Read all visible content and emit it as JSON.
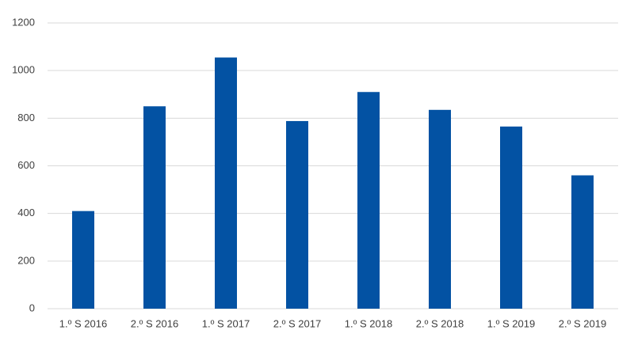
{
  "chart_data": {
    "type": "bar",
    "categories": [
      "1.º S 2016",
      "2.º S 2016",
      "1.º S 2017",
      "2.º S 2017",
      "1.º S 2018",
      "2.º S 2018",
      "1.º S 2019",
      "2.º S 2019"
    ],
    "values": [
      410,
      850,
      1055,
      788,
      910,
      835,
      765,
      560
    ],
    "color": "#0352a3",
    "ylim": [
      0,
      1200
    ],
    "yticks": [
      0,
      200,
      400,
      600,
      800,
      1000,
      1200
    ],
    "grid": true
  }
}
